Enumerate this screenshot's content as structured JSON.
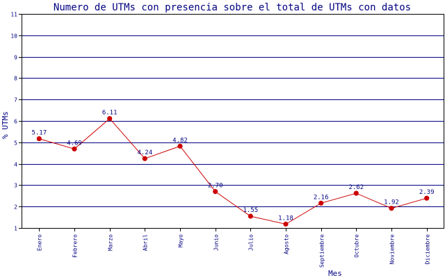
{
  "chart_data": {
    "type": "line",
    "title": "Numero de UTMs con presencia sobre el total de UTMs con datos",
    "xlabel": "Mes",
    "ylabel": "% UTMs",
    "categories": [
      "Enero",
      "Febrero",
      "Marzo",
      "Abril",
      "Mayo",
      "Junio",
      "Julio",
      "Agosto",
      "Septiembre",
      "Octubre",
      "Noviembre",
      "Diciembre"
    ],
    "series": [
      {
        "values": [
          5.17,
          4.69,
          6.11,
          4.24,
          4.82,
          2.7,
          1.55,
          1.18,
          2.16,
          2.62,
          1.92,
          2.39
        ],
        "labels": [
          "5.17",
          "4.69",
          "6.11",
          "4.24",
          "4.82",
          "2.70",
          "1.55",
          "1.18",
          "2.16",
          "2.62",
          "1.92",
          "2.39"
        ]
      }
    ],
    "ylim": [
      1,
      11
    ],
    "yticks": [
      "1",
      "2",
      "3",
      "4",
      "5",
      "6",
      "7",
      "8",
      "9",
      "10",
      "11"
    ],
    "grid": true,
    "colors": {
      "line": "#cc0000",
      "marker": "#cc0000",
      "grid": "#000080",
      "text": "#000080",
      "axis": "#000000"
    }
  }
}
